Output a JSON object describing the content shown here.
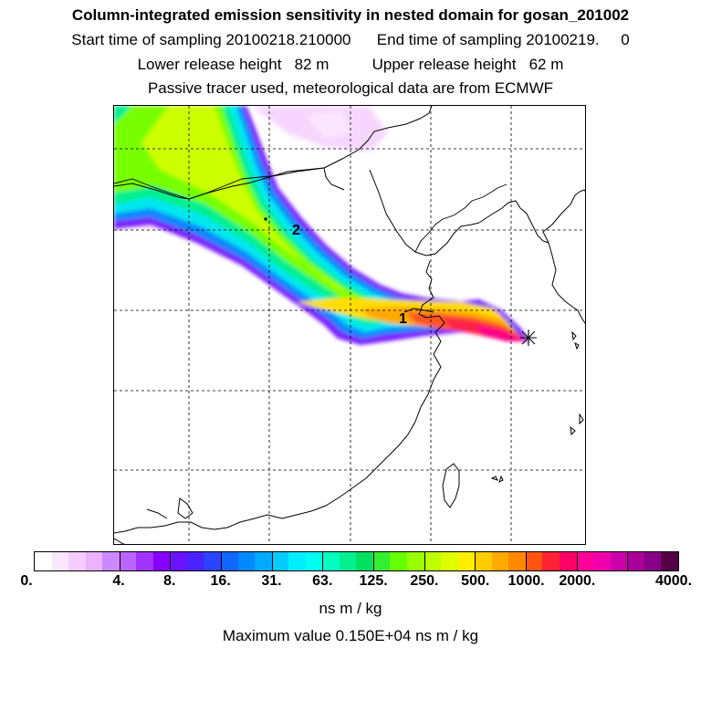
{
  "header": {
    "title": "Column-integrated emission sensitivity in nested domain for gosan_201002",
    "line2": "Start time of sampling 20100218.210000      End time of sampling 20100219.     0",
    "line3": "Lower release height   82 m          Upper release height   62 m",
    "line4": "Passive tracer used, meteorological data are from ECMWF"
  },
  "map": {
    "labels": [
      {
        "text": "1"
      },
      {
        "text": "2"
      }
    ],
    "receptor_marker": "asterisk-icon"
  },
  "colorbar": {
    "colors": [
      "#ffffff",
      "#fbe6ff",
      "#f4ccff",
      "#eab2ff",
      "#cc88ff",
      "#b866ff",
      "#a133ff",
      "#8800ff",
      "#6a11ff",
      "#4a22ff",
      "#2a44ff",
      "#1166ff",
      "#0088ff",
      "#00aaff",
      "#00ccff",
      "#00eeff",
      "#00ffee",
      "#00ffc0",
      "#00f090",
      "#00e060",
      "#33ee33",
      "#66ff00",
      "#99ff00",
      "#bbff00",
      "#ddff00",
      "#ffee00",
      "#ffcc00",
      "#ffaa00",
      "#ff8800",
      "#ff5511",
      "#ff2233",
      "#ff0066",
      "#ff0099",
      "#ee00aa",
      "#cc00aa",
      "#aa0099",
      "#880088",
      "#550044"
    ],
    "tick_labels": [
      "0.",
      "4.",
      "8.",
      "16.",
      "31.",
      "63.",
      "125.",
      "250.",
      "500.",
      "1000.",
      "2000.",
      "4000."
    ],
    "units": "ns m / kg"
  },
  "footer": {
    "max_value": "Maximum value  0.150E+04 ns m / kg"
  }
}
